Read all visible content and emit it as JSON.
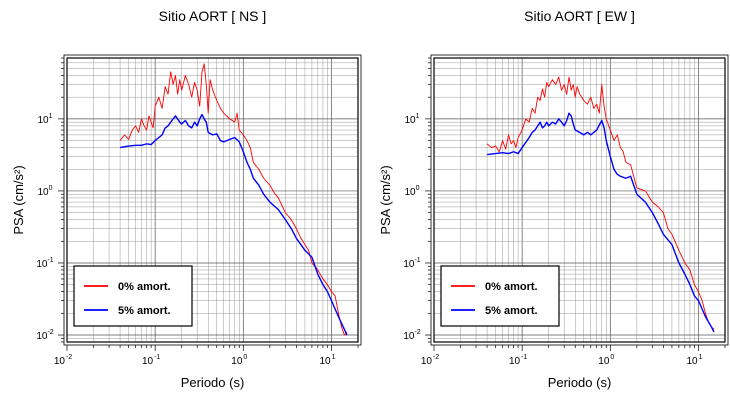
{
  "chart_data": [
    {
      "type": "line",
      "title": "Sitio AORT [ NS ]",
      "xlabel": "Periodo (s)",
      "ylabel": "PSA (cm/s²)",
      "xscale": "log",
      "yscale": "log",
      "xlim": [
        0.01,
        20
      ],
      "ylim": [
        0.008,
        70
      ],
      "grid": true,
      "legend_position": "bottom-left",
      "x_ticks": [
        {
          "base": "10",
          "exp": "-2",
          "value": 0.01
        },
        {
          "base": "10",
          "exp": "-1",
          "value": 0.1
        },
        {
          "base": "10",
          "exp": "0",
          "value": 1
        },
        {
          "base": "10",
          "exp": "1",
          "value": 10
        }
      ],
      "y_ticks": [
        {
          "base": "10",
          "exp": "-2",
          "value": 0.01
        },
        {
          "base": "10",
          "exp": "-1",
          "value": 0.1
        },
        {
          "base": "10",
          "exp": "0",
          "value": 1
        },
        {
          "base": "10",
          "exp": "1",
          "value": 10
        }
      ],
      "series": [
        {
          "name": "0% amort.",
          "color": "#ff0000",
          "points": [
            [
              0.04,
              5.0
            ],
            [
              0.045,
              6.0
            ],
            [
              0.05,
              5.2
            ],
            [
              0.055,
              7.0
            ],
            [
              0.06,
              8.0
            ],
            [
              0.065,
              6.5
            ],
            [
              0.07,
              10.0
            ],
            [
              0.075,
              8.0
            ],
            [
              0.08,
              7.0
            ],
            [
              0.085,
              11.0
            ],
            [
              0.09,
              9.0
            ],
            [
              0.095,
              7.5
            ],
            [
              0.1,
              15.0
            ],
            [
              0.11,
              20.0
            ],
            [
              0.12,
              14.0
            ],
            [
              0.13,
              28.0
            ],
            [
              0.14,
              22.0
            ],
            [
              0.15,
              45.0
            ],
            [
              0.16,
              30.0
            ],
            [
              0.17,
              40.0
            ],
            [
              0.18,
              22.0
            ],
            [
              0.19,
              35.0
            ],
            [
              0.2,
              25.0
            ],
            [
              0.22,
              40.0
            ],
            [
              0.24,
              30.0
            ],
            [
              0.26,
              20.0
            ],
            [
              0.28,
              32.0
            ],
            [
              0.3,
              25.0
            ],
            [
              0.32,
              15.0
            ],
            [
              0.34,
              45.0
            ],
            [
              0.36,
              58.0
            ],
            [
              0.38,
              30.0
            ],
            [
              0.4,
              12.0
            ],
            [
              0.42,
              35.0
            ],
            [
              0.45,
              25.0
            ],
            [
              0.5,
              18.0
            ],
            [
              0.55,
              14.0
            ],
            [
              0.6,
              12.0
            ],
            [
              0.7,
              10.0
            ],
            [
              0.8,
              9.0
            ],
            [
              0.85,
              12.0
            ],
            [
              0.9,
              7.0
            ],
            [
              1.0,
              6.0
            ],
            [
              1.1,
              5.0
            ],
            [
              1.2,
              4.0
            ],
            [
              1.3,
              2.5
            ],
            [
              1.4,
              2.2
            ],
            [
              1.5,
              2.0
            ],
            [
              1.7,
              1.5
            ],
            [
              2.0,
              1.2
            ],
            [
              2.3,
              0.9
            ],
            [
              2.5,
              0.8
            ],
            [
              3.0,
              0.5
            ],
            [
              3.5,
              0.4
            ],
            [
              4.0,
              0.3
            ],
            [
              4.5,
              0.22
            ],
            [
              5.0,
              0.18
            ],
            [
              5.5,
              0.15
            ],
            [
              6.0,
              0.1
            ],
            [
              7.0,
              0.08
            ],
            [
              8.0,
              0.06
            ],
            [
              9.0,
              0.05
            ],
            [
              10.0,
              0.04
            ],
            [
              11.0,
              0.035
            ],
            [
              12.0,
              0.02
            ],
            [
              13.0,
              0.013
            ],
            [
              14.0,
              0.01
            ],
            [
              15.0,
              0.011
            ]
          ]
        },
        {
          "name": "5% amort.",
          "color": "#0000ff",
          "points": [
            [
              0.04,
              4.0
            ],
            [
              0.05,
              4.2
            ],
            [
              0.06,
              4.3
            ],
            [
              0.07,
              4.3
            ],
            [
              0.08,
              4.5
            ],
            [
              0.09,
              4.4
            ],
            [
              0.1,
              5.0
            ],
            [
              0.12,
              6.0
            ],
            [
              0.13,
              7.5
            ],
            [
              0.14,
              8.0
            ],
            [
              0.15,
              9.0
            ],
            [
              0.16,
              10.0
            ],
            [
              0.17,
              11.0
            ],
            [
              0.18,
              10.0
            ],
            [
              0.19,
              9.0
            ],
            [
              0.2,
              8.5
            ],
            [
              0.22,
              9.5
            ],
            [
              0.24,
              8.0
            ],
            [
              0.26,
              7.5
            ],
            [
              0.28,
              9.0
            ],
            [
              0.3,
              8.0
            ],
            [
              0.32,
              10.0
            ],
            [
              0.34,
              11.5
            ],
            [
              0.36,
              10.0
            ],
            [
              0.38,
              9.0
            ],
            [
              0.4,
              6.5
            ],
            [
              0.45,
              6.0
            ],
            [
              0.5,
              6.2
            ],
            [
              0.55,
              5.0
            ],
            [
              0.6,
              4.8
            ],
            [
              0.7,
              5.2
            ],
            [
              0.8,
              5.5
            ],
            [
              0.9,
              4.8
            ],
            [
              1.0,
              3.5
            ],
            [
              1.1,
              2.5
            ],
            [
              1.2,
              2.0
            ],
            [
              1.3,
              1.5
            ],
            [
              1.5,
              1.2
            ],
            [
              1.7,
              0.9
            ],
            [
              2.0,
              0.7
            ],
            [
              2.5,
              0.55
            ],
            [
              3.0,
              0.4
            ],
            [
              3.5,
              0.3
            ],
            [
              4.0,
              0.22
            ],
            [
              5.0,
              0.15
            ],
            [
              6.0,
              0.12
            ],
            [
              7.0,
              0.07
            ],
            [
              8.0,
              0.05
            ],
            [
              9.0,
              0.04
            ],
            [
              10.0,
              0.03
            ],
            [
              12.0,
              0.018
            ],
            [
              14.0,
              0.012
            ],
            [
              15.0,
              0.01
            ]
          ]
        }
      ]
    },
    {
      "type": "line",
      "title": "Sitio AORT [ EW ]",
      "xlabel": "Periodo (s)",
      "ylabel": "PSA (cm/s²)",
      "xscale": "log",
      "yscale": "log",
      "xlim": [
        0.01,
        20
      ],
      "ylim": [
        0.008,
        70
      ],
      "grid": true,
      "legend_position": "bottom-left",
      "x_ticks": [
        {
          "base": "10",
          "exp": "-2",
          "value": 0.01
        },
        {
          "base": "10",
          "exp": "-1",
          "value": 0.1
        },
        {
          "base": "10",
          "exp": "0",
          "value": 1
        },
        {
          "base": "10",
          "exp": "1",
          "value": 10
        }
      ],
      "y_ticks": [
        {
          "base": "10",
          "exp": "-2",
          "value": 0.01
        },
        {
          "base": "10",
          "exp": "-1",
          "value": 0.1
        },
        {
          "base": "10",
          "exp": "0",
          "value": 1
        },
        {
          "base": "10",
          "exp": "1",
          "value": 10
        }
      ],
      "series": [
        {
          "name": "0% amort.",
          "color": "#ff0000",
          "points": [
            [
              0.04,
              4.5
            ],
            [
              0.045,
              4.0
            ],
            [
              0.05,
              4.2
            ],
            [
              0.055,
              3.5
            ],
            [
              0.06,
              5.0
            ],
            [
              0.065,
              3.8
            ],
            [
              0.07,
              6.0
            ],
            [
              0.075,
              4.5
            ],
            [
              0.08,
              5.0
            ],
            [
              0.085,
              4.0
            ],
            [
              0.09,
              5.5
            ],
            [
              0.1,
              7.0
            ],
            [
              0.11,
              10.0
            ],
            [
              0.12,
              9.0
            ],
            [
              0.13,
              14.0
            ],
            [
              0.14,
              12.0
            ],
            [
              0.15,
              20.0
            ],
            [
              0.16,
              18.0
            ],
            [
              0.17,
              26.0
            ],
            [
              0.18,
              20.0
            ],
            [
              0.19,
              32.0
            ],
            [
              0.2,
              28.0
            ],
            [
              0.22,
              35.0
            ],
            [
              0.24,
              30.0
            ],
            [
              0.26,
              38.0
            ],
            [
              0.28,
              25.0
            ],
            [
              0.3,
              30.0
            ],
            [
              0.32,
              22.0
            ],
            [
              0.34,
              38.0
            ],
            [
              0.36,
              25.0
            ],
            [
              0.38,
              30.0
            ],
            [
              0.4,
              20.0
            ],
            [
              0.42,
              28.0
            ],
            [
              0.45,
              22.0
            ],
            [
              0.5,
              18.0
            ],
            [
              0.55,
              16.0
            ],
            [
              0.6,
              20.0
            ],
            [
              0.65,
              14.0
            ],
            [
              0.7,
              16.0
            ],
            [
              0.75,
              12.0
            ],
            [
              0.8,
              30.0
            ],
            [
              0.85,
              15.0
            ],
            [
              0.9,
              10.0
            ],
            [
              1.0,
              7.0
            ],
            [
              1.1,
              5.0
            ],
            [
              1.2,
              6.0
            ],
            [
              1.3,
              4.0
            ],
            [
              1.4,
              3.5
            ],
            [
              1.5,
              2.5
            ],
            [
              1.7,
              2.3
            ],
            [
              2.0,
              1.1
            ],
            [
              2.5,
              1.0
            ],
            [
              3.0,
              0.7
            ],
            [
              3.5,
              0.6
            ],
            [
              4.0,
              0.5
            ],
            [
              4.5,
              0.3
            ],
            [
              5.0,
              0.25
            ],
            [
              6.0,
              0.15
            ],
            [
              7.0,
              0.1
            ],
            [
              8.0,
              0.08
            ],
            [
              9.0,
              0.05
            ],
            [
              10.0,
              0.04
            ],
            [
              11.0,
              0.03
            ],
            [
              12.0,
              0.02
            ],
            [
              13.0,
              0.015
            ],
            [
              14.0,
              0.013
            ],
            [
              15.0,
              0.012
            ]
          ]
        },
        {
          "name": "5% amort.",
          "color": "#0000ff",
          "points": [
            [
              0.04,
              3.2
            ],
            [
              0.05,
              3.3
            ],
            [
              0.06,
              3.4
            ],
            [
              0.07,
              3.3
            ],
            [
              0.08,
              3.5
            ],
            [
              0.09,
              3.3
            ],
            [
              0.1,
              4.0
            ],
            [
              0.12,
              5.5
            ],
            [
              0.13,
              6.5
            ],
            [
              0.14,
              7.0
            ],
            [
              0.15,
              8.0
            ],
            [
              0.16,
              9.0
            ],
            [
              0.17,
              7.5
            ],
            [
              0.18,
              8.0
            ],
            [
              0.19,
              9.0
            ],
            [
              0.2,
              8.0
            ],
            [
              0.22,
              9.0
            ],
            [
              0.24,
              8.5
            ],
            [
              0.26,
              10.0
            ],
            [
              0.28,
              9.0
            ],
            [
              0.3,
              8.0
            ],
            [
              0.32,
              9.5
            ],
            [
              0.34,
              12.0
            ],
            [
              0.36,
              11.0
            ],
            [
              0.38,
              8.5
            ],
            [
              0.4,
              7.0
            ],
            [
              0.45,
              6.5
            ],
            [
              0.5,
              6.0
            ],
            [
              0.55,
              6.5
            ],
            [
              0.6,
              6.0
            ],
            [
              0.7,
              7.0
            ],
            [
              0.8,
              9.5
            ],
            [
              0.85,
              7.5
            ],
            [
              0.9,
              5.0
            ],
            [
              1.0,
              3.0
            ],
            [
              1.1,
              2.0
            ],
            [
              1.2,
              1.7
            ],
            [
              1.3,
              1.6
            ],
            [
              1.5,
              1.5
            ],
            [
              1.7,
              1.6
            ],
            [
              2.0,
              0.9
            ],
            [
              2.5,
              0.7
            ],
            [
              3.0,
              0.5
            ],
            [
              3.5,
              0.35
            ],
            [
              4.0,
              0.25
            ],
            [
              5.0,
              0.18
            ],
            [
              6.0,
              0.1
            ],
            [
              7.0,
              0.07
            ],
            [
              8.0,
              0.05
            ],
            [
              9.0,
              0.035
            ],
            [
              10.0,
              0.03
            ],
            [
              12.0,
              0.018
            ],
            [
              14.0,
              0.013
            ],
            [
              15.0,
              0.011
            ]
          ]
        }
      ]
    }
  ]
}
